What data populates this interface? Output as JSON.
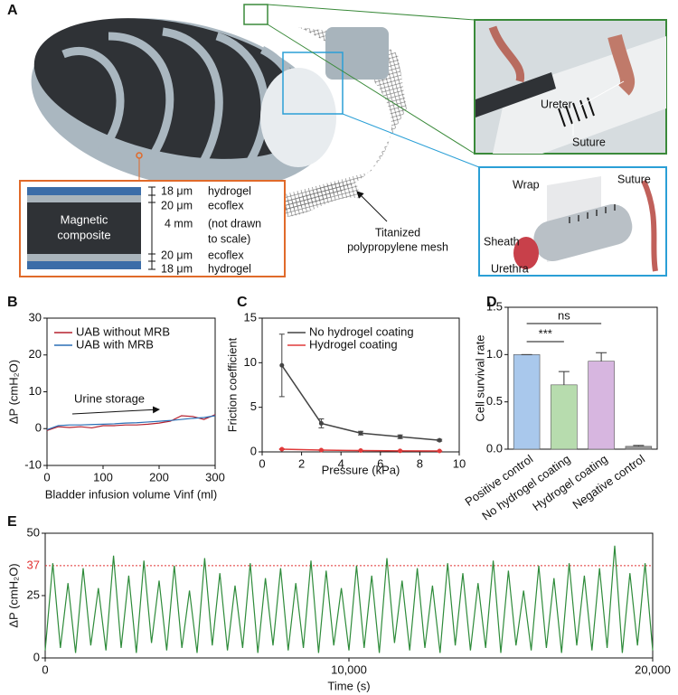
{
  "panel_a": {
    "panel": "A",
    "inset_top": {
      "ureter": "Ureter",
      "suture": "Suture"
    },
    "inset_bottom": {
      "wrap": "Wrap",
      "suture": "Suture",
      "sheath": "Sheath",
      "urethra": "Urethra"
    },
    "core_label": [
      "Magnetic",
      "composite"
    ],
    "layers": [
      {
        "thickness": "18 μm",
        "material": "hydrogel"
      },
      {
        "thickness": "20 μm",
        "material": "ecoflex"
      },
      {
        "thickness": "4 mm",
        "note": [
          "(not drawn",
          "to scale)"
        ]
      },
      {
        "thickness": "20 μm",
        "material": "ecoflex"
      },
      {
        "thickness": "18 μm",
        "material": "hydrogel"
      }
    ],
    "mesh_label": [
      "Titanized",
      "polypropylene mesh"
    ]
  },
  "chart_data": [
    {
      "panel": "B",
      "type": "line",
      "xlabel": "Bladder infusion volume Vinf (ml)",
      "ylabel": "ΔP (cmH₂O)",
      "x": [
        0,
        20,
        40,
        60,
        80,
        100,
        120,
        140,
        160,
        180,
        200,
        220,
        240,
        260,
        280,
        300
      ],
      "series": [
        {
          "name": "UAB without MRB",
          "color": "#b5202e",
          "values": [
            -0.5,
            0.5,
            0.3,
            0.5,
            0.2,
            0.8,
            0.8,
            1,
            1,
            1.2,
            1.5,
            2,
            3.5,
            3.3,
            2.5,
            3.8
          ]
        },
        {
          "name": "UAB with MRB",
          "color": "#2a6fb5",
          "values": [
            -0.3,
            0.8,
            1,
            1,
            1.1,
            1.2,
            1.3,
            1.5,
            1.6,
            1.8,
            2,
            2.2,
            2.5,
            2.8,
            3,
            3.5
          ]
        }
      ],
      "annotation": "Urine storage",
      "xlim": [
        0,
        300
      ],
      "xticks": [
        0,
        100,
        200,
        300
      ],
      "ylim": [
        -10,
        30
      ],
      "yticks": [
        -10,
        0,
        10,
        20,
        30
      ],
      "legend": "upper left"
    },
    {
      "panel": "C",
      "type": "line",
      "markers": true,
      "xlabel": "Pressure (kPa)",
      "ylabel": "Friction coefficient",
      "x": [
        1,
        3,
        5,
        7,
        9
      ],
      "series": [
        {
          "name": "No hydrogel coating",
          "color": "#444444",
          "values": [
            9.7,
            3.2,
            2.1,
            1.7,
            1.3
          ],
          "errors": [
            3.5,
            0.5,
            0.2,
            0.2,
            0.1
          ]
        },
        {
          "name": "Hydrogel coating",
          "color": "#e03a3a",
          "values": [
            0.3,
            0.2,
            0.15,
            0.12,
            0.1
          ],
          "errors": [
            0.05,
            0.03,
            0.03,
            0.02,
            0.02
          ]
        }
      ],
      "xlim": [
        0,
        10
      ],
      "xticks": [
        0,
        2,
        4,
        6,
        8,
        10
      ],
      "ylim": [
        0,
        15
      ],
      "yticks": [
        0,
        5,
        10,
        15
      ],
      "legend": "upper right"
    },
    {
      "panel": "D",
      "type": "bar",
      "ylabel": "Cell survival rate",
      "categories": [
        "Positive control",
        "No hydrogel coating",
        "Hydrogel coating",
        "Negative control"
      ],
      "values": [
        1.0,
        0.68,
        0.93,
        0.03
      ],
      "errors": [
        0,
        0.14,
        0.09,
        0.01
      ],
      "colors": [
        "#a9c8ec",
        "#b7dcae",
        "#d7b6e0",
        "#9a9a9a"
      ],
      "significance": [
        {
          "from": 0,
          "to": 1,
          "label": "***"
        },
        {
          "from": 0,
          "to": 2,
          "label": "ns"
        }
      ],
      "ylim": [
        0,
        1.5
      ],
      "yticks": [
        {
          "value": 0,
          "label": "0.0"
        },
        {
          "value": 0.5,
          "label": "0.5"
        },
        {
          "value": 1,
          "label": "1.0"
        },
        {
          "value": 1.5,
          "label": "1.5"
        }
      ]
    },
    {
      "panel": "E",
      "type": "line",
      "xlabel": "Time (s)",
      "ylabel": "ΔP (cmH₂O)",
      "x": [
        0,
        250,
        500,
        750,
        1000,
        1250,
        1500,
        1750,
        2000,
        2250,
        2500,
        2750,
        3000,
        3250,
        3500,
        3750,
        4000,
        4250,
        4500,
        4750,
        5000,
        5250,
        5500,
        5750,
        6000,
        6250,
        6500,
        6750,
        7000,
        7250,
        7500,
        7750,
        8000,
        8250,
        8500,
        8750,
        9000,
        9250,
        9500,
        9750,
        10000,
        10250,
        10500,
        10750,
        11000,
        11250,
        11500,
        11750,
        12000,
        12250,
        12500,
        12750,
        13000,
        13250,
        13500,
        13750,
        14000,
        14250,
        14500,
        14750,
        15000,
        15250,
        15500,
        15750,
        16000,
        16250,
        16500,
        16750,
        17000,
        17250,
        17500,
        17750,
        18000,
        18250,
        18500,
        18750,
        19000,
        19250,
        19500,
        19750,
        20000
      ],
      "series": [
        {
          "color": "#2e8b3a",
          "values": [
            3,
            38,
            4,
            30,
            2,
            36,
            5,
            28,
            3,
            41,
            4,
            33,
            2,
            39,
            6,
            31,
            3,
            37,
            4,
            27,
            2,
            40,
            5,
            34,
            3,
            29,
            4,
            38,
            2,
            32,
            5,
            36,
            3,
            30,
            4,
            39,
            2,
            35,
            5,
            28,
            3,
            37,
            4,
            33,
            2,
            40,
            6,
            31,
            3,
            36,
            4,
            29,
            2,
            38,
            5,
            34,
            3,
            30,
            4,
            39,
            2,
            35,
            5,
            27,
            3,
            37,
            4,
            32,
            2,
            38,
            5,
            33,
            3,
            36,
            4,
            45,
            2,
            34,
            5,
            38,
            3
          ]
        }
      ],
      "reference_line": {
        "value": 37,
        "color": "#e03030"
      },
      "xlim": [
        0,
        20000
      ],
      "xticks": [
        0,
        {
          "value": 10000,
          "label": "10,000"
        },
        {
          "value": 20000,
          "label": "20,000"
        }
      ],
      "ylim": [
        0,
        50
      ],
      "yticks": [
        0,
        25,
        50
      ]
    }
  ]
}
